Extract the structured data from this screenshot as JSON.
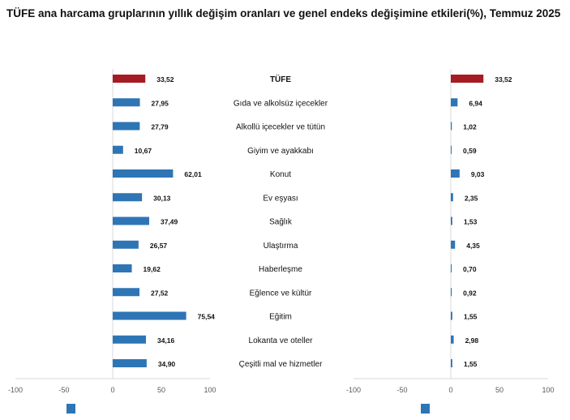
{
  "title": "TÜFE ana harcama gruplarının yıllık değişim oranları ve genel endeks değişimine etkileri(%), Temmuz 2025",
  "colors": {
    "highlight": "#a51c24",
    "bar": "#2e75b6",
    "axis": "#d9d9d9",
    "text": "#111111"
  },
  "chart_data": [
    {
      "type": "bar",
      "orientation": "horizontal",
      "categories": [
        "TÜFE",
        "Gıda ve alkolsüz içecekler",
        "Alkollü içecekler ve tütün",
        "Giyim ve ayakkabı",
        "Konut",
        "Ev eşyası",
        "Sağlık",
        "Ulaştırma",
        "Haberleşme",
        "Eğlence ve kültür",
        "Eğitim",
        "Lokanta ve oteller",
        "Çeşitli mal ve hizmetler"
      ],
      "values": [
        33.52,
        27.95,
        27.79,
        10.67,
        62.01,
        30.13,
        37.49,
        26.57,
        19.62,
        27.52,
        75.54,
        34.16,
        34.9
      ],
      "labels": [
        "33,52",
        "27,95",
        "27,79",
        "10,67",
        "62,01",
        "30,13",
        "37,49",
        "26,57",
        "19,62",
        "27,52",
        "75,54",
        "34,16",
        "34,90"
      ],
      "xlim": [
        -100,
        100
      ],
      "xticks": [
        "-100",
        "-50",
        "0",
        "50",
        "100"
      ],
      "grid": false,
      "legend": "bottom"
    },
    {
      "type": "bar",
      "orientation": "horizontal",
      "categories": [
        "TÜFE",
        "Gıda ve alkolsüz içecekler",
        "Alkollü içecekler ve tütün",
        "Giyim ve ayakkabı",
        "Konut",
        "Ev eşyası",
        "Sağlık",
        "Ulaştırma",
        "Haberleşme",
        "Eğlence ve kültür",
        "Eğitim",
        "Lokanta ve oteller",
        "Çeşitli mal ve hizmetler"
      ],
      "values": [
        33.52,
        6.94,
        1.02,
        0.59,
        9.03,
        2.35,
        1.53,
        4.35,
        0.7,
        0.92,
        1.55,
        2.98,
        1.55
      ],
      "labels": [
        "33,52",
        "6,94",
        "1,02",
        "0,59",
        "9,03",
        "2,35",
        "1,53",
        "4,35",
        "0,70",
        "0,92",
        "1,55",
        "2,98",
        "1,55"
      ],
      "xlim": [
        -100,
        100
      ],
      "xticks": [
        "-100",
        "-50",
        "0",
        "50",
        "100"
      ],
      "grid": false,
      "legend": "bottom"
    }
  ]
}
